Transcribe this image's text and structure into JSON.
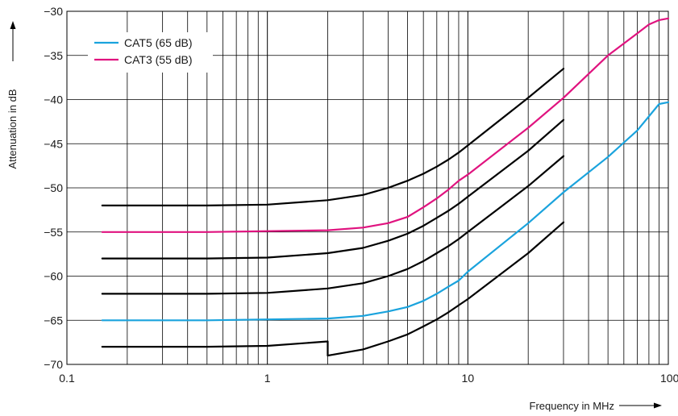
{
  "chart_data": {
    "type": "line",
    "title": "",
    "xlabel": "Frequency in MHz",
    "ylabel": "Attenuation in dB",
    "x_scale": "log",
    "xlim": [
      0.1,
      100
    ],
    "ylim": [
      -70,
      -30
    ],
    "x_ticks": [
      0.1,
      1,
      10,
      100
    ],
    "x_tick_labels": [
      "0.1",
      "1",
      "10",
      "100"
    ],
    "y_ticks": [
      -30,
      -35,
      -40,
      -45,
      -50,
      -55,
      -60,
      -65,
      -70
    ],
    "y_tick_labels": [
      "−30",
      "−35",
      "−40",
      "−45",
      "−50",
      "−55",
      "−60",
      "−65",
      "−70"
    ],
    "grid": true,
    "legend_position": "top-left",
    "legend": [
      {
        "label": "CAT5 (65 dB)",
        "color": "#1aa3dd"
      },
      {
        "label": "CAT3 (55 dB)",
        "color": "#e0137f"
      }
    ],
    "series": [
      {
        "name": "CAT5 (65 dB)",
        "color": "#1aa3dd",
        "highlight": true,
        "x": [
          0.15,
          0.5,
          1,
          2,
          3,
          4,
          5,
          6,
          7,
          8,
          9,
          10,
          20,
          30,
          50,
          70,
          90,
          100
        ],
        "y": [
          -65,
          -65,
          -64.9,
          -64.8,
          -64.5,
          -64.0,
          -63.5,
          -62.8,
          -62.0,
          -61.2,
          -60.5,
          -59.5,
          -54.0,
          -50.5,
          -46.5,
          -43.5,
          -40.5,
          -40.3
        ]
      },
      {
        "name": "CAT3 (55 dB)",
        "color": "#e0137f",
        "highlight": true,
        "x": [
          0.15,
          0.5,
          1,
          2,
          3,
          4,
          5,
          6,
          7,
          8,
          9,
          10,
          20,
          30,
          50,
          70,
          80,
          90,
          100
        ],
        "y": [
          -55,
          -55,
          -54.9,
          -54.8,
          -54.5,
          -54.0,
          -53.3,
          -52.2,
          -51.2,
          -50.2,
          -49.2,
          -48.5,
          -43.2,
          -39.8,
          -35.0,
          -32.5,
          -31.5,
          -31.0,
          -30.8
        ]
      },
      {
        "color": "#000000",
        "x": [
          0.15,
          0.5,
          1,
          2,
          3,
          4,
          5,
          6,
          7,
          8,
          9,
          10,
          20,
          30
        ],
        "y": [
          -52,
          -52,
          -51.9,
          -51.4,
          -50.8,
          -50.0,
          -49.2,
          -48.4,
          -47.6,
          -46.8,
          -46.0,
          -45.2,
          -39.8,
          -36.5
        ]
      },
      {
        "color": "#000000",
        "x": [
          0.15,
          0.5,
          1,
          2,
          3,
          4,
          5,
          6,
          7,
          8,
          9,
          10,
          20,
          30
        ],
        "y": [
          -58,
          -58,
          -57.9,
          -57.4,
          -56.8,
          -56.0,
          -55.2,
          -54.3,
          -53.4,
          -52.6,
          -51.8,
          -51.0,
          -45.8,
          -42.3
        ]
      },
      {
        "color": "#000000",
        "x": [
          0.15,
          0.5,
          1,
          2,
          3,
          4,
          5,
          6,
          7,
          8,
          9,
          10,
          20,
          30
        ],
        "y": [
          -62,
          -62,
          -61.9,
          -61.4,
          -60.8,
          -60.0,
          -59.2,
          -58.3,
          -57.4,
          -56.6,
          -55.8,
          -55.0,
          -49.8,
          -46.4
        ]
      },
      {
        "color": "#000000",
        "x": [
          0.15,
          0.5,
          1,
          2,
          2,
          3,
          4,
          5,
          6,
          7,
          8,
          9,
          10,
          20,
          30
        ],
        "y": [
          -68,
          -68,
          -67.9,
          -67.4,
          -69.0,
          -68.3,
          -67.4,
          -66.6,
          -65.7,
          -64.9,
          -64.1,
          -63.3,
          -62.6,
          -57.4,
          -53.9
        ]
      }
    ]
  }
}
